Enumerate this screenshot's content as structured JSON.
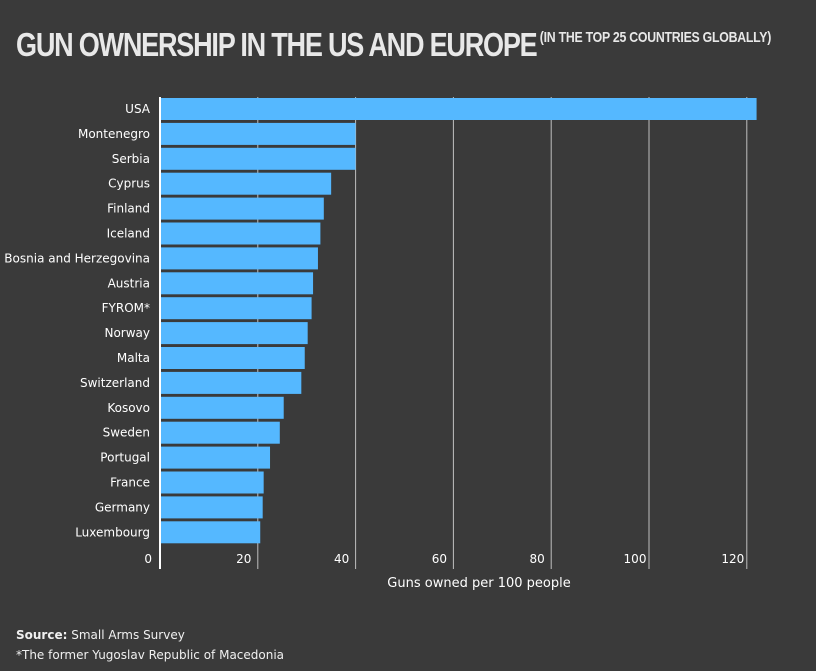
{
  "title": "GUN OWNERSHIP IN THE US AND EUROPE",
  "subtitle": "(IN THE TOP 25 COUNTRIES GLOBALLY)",
  "footer": {
    "source_label": "Source:",
    "source_value": "Small Arms Survey",
    "note": "*The former Yugoslav Republic of Macedonia"
  },
  "colors": {
    "background": "#3a3a3a",
    "bar": "#55b8ff",
    "gridline": "#bfbfbf",
    "text": "#ffffff"
  },
  "chart_data": {
    "type": "bar",
    "orientation": "horizontal",
    "categories": [
      "USA",
      "Montenegro",
      "Serbia",
      "Cyprus",
      "Finland",
      "Iceland",
      "Bosnia and Herzegovina",
      "Austria",
      "FYROM*",
      "Norway",
      "Malta",
      "Switzerland",
      "Kosovo",
      "Sweden",
      "Portugal",
      "France",
      "Germany",
      "Luxembourg"
    ],
    "values": [
      122,
      40,
      40,
      35,
      33.5,
      32.8,
      32.3,
      31.3,
      31,
      30.2,
      29.6,
      28.9,
      25.3,
      24.5,
      22.5,
      21.2,
      21,
      20.5
    ],
    "xlabel": "Guns owned per 100 people",
    "ylabel": "",
    "xlim": [
      0,
      125
    ],
    "xticks": [
      0,
      20,
      40,
      60,
      80,
      100,
      120
    ],
    "grid": true
  }
}
